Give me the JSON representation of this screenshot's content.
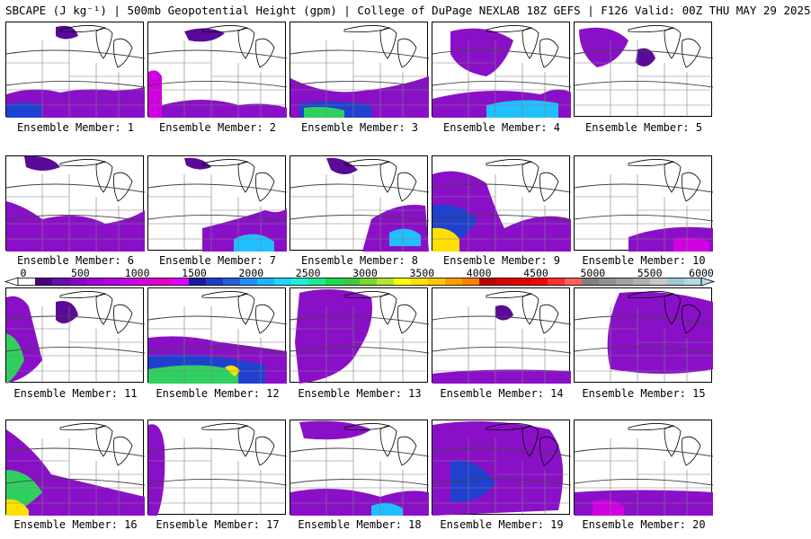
{
  "header": {
    "title": "SBCAPE (J kg⁻¹) | 500mb Geopotential Height (gpm) | College of DuPage NEXLAB 18Z GEFS | F126 Valid: 00Z THU MAY 29 2025"
  },
  "colorbar": {
    "tick_labels": [
      "0",
      "500",
      "1000",
      "1500",
      "2000",
      "2500",
      "3000",
      "3500",
      "4000",
      "4500",
      "5000",
      "5500",
      "6000"
    ],
    "colors": [
      "#ffffff",
      "#4b0082",
      "#6a0dad",
      "#8b00c8",
      "#a000d8",
      "#b400e6",
      "#c800e8",
      "#d800d8",
      "#e400c8",
      "#e000ff",
      "#1a1aa0",
      "#1f3cc8",
      "#2060e0",
      "#2090ff",
      "#20b4ff",
      "#20d8ff",
      "#20f0d8",
      "#20e890",
      "#20d850",
      "#40c840",
      "#78d830",
      "#b0e830",
      "#ffff00",
      "#ffe000",
      "#ffc800",
      "#ffa000",
      "#ff8000",
      "#c00000",
      "#d80000",
      "#e80000",
      "#ff0000",
      "#ff3030",
      "#ff6060",
      "#808080",
      "#909090",
      "#a0a0a0",
      "#b0b0b0",
      "#c8c8c8",
      "#a0c8d8",
      "#b8d8e8"
    ],
    "range": [
      0,
      6000
    ],
    "units": "J kg-1"
  },
  "panels": [
    {
      "label": "Ensemble Member: 1"
    },
    {
      "label": "Ensemble Member: 2"
    },
    {
      "label": "Ensemble Member: 3"
    },
    {
      "label": "Ensemble Member: 4"
    },
    {
      "label": "Ensemble Member: 5"
    },
    {
      "label": "Ensemble Member: 6"
    },
    {
      "label": "Ensemble Member: 7"
    },
    {
      "label": "Ensemble Member: 8"
    },
    {
      "label": "Ensemble Member: 9"
    },
    {
      "label": "Ensemble Member: 10"
    },
    {
      "label": "Ensemble Member: 11"
    },
    {
      "label": "Ensemble Member: 12"
    },
    {
      "label": "Ensemble Member: 13"
    },
    {
      "label": "Ensemble Member: 14"
    },
    {
      "label": "Ensemble Member: 15"
    },
    {
      "label": "Ensemble Member: 16"
    },
    {
      "label": "Ensemble Member: 17"
    },
    {
      "label": "Ensemble Member: 18"
    },
    {
      "label": "Ensemble Member: 19"
    },
    {
      "label": "Ensemble Member: 20"
    }
  ],
  "colors": {
    "purple_dark": "#5a0a9a",
    "purple": "#8a10c8",
    "magenta": "#d000e0",
    "blue": "#2040d0",
    "cyan": "#20c0ff",
    "green": "#30d060",
    "yellow": "#ffe000",
    "border": "#000000",
    "state_lines": "#808080"
  }
}
